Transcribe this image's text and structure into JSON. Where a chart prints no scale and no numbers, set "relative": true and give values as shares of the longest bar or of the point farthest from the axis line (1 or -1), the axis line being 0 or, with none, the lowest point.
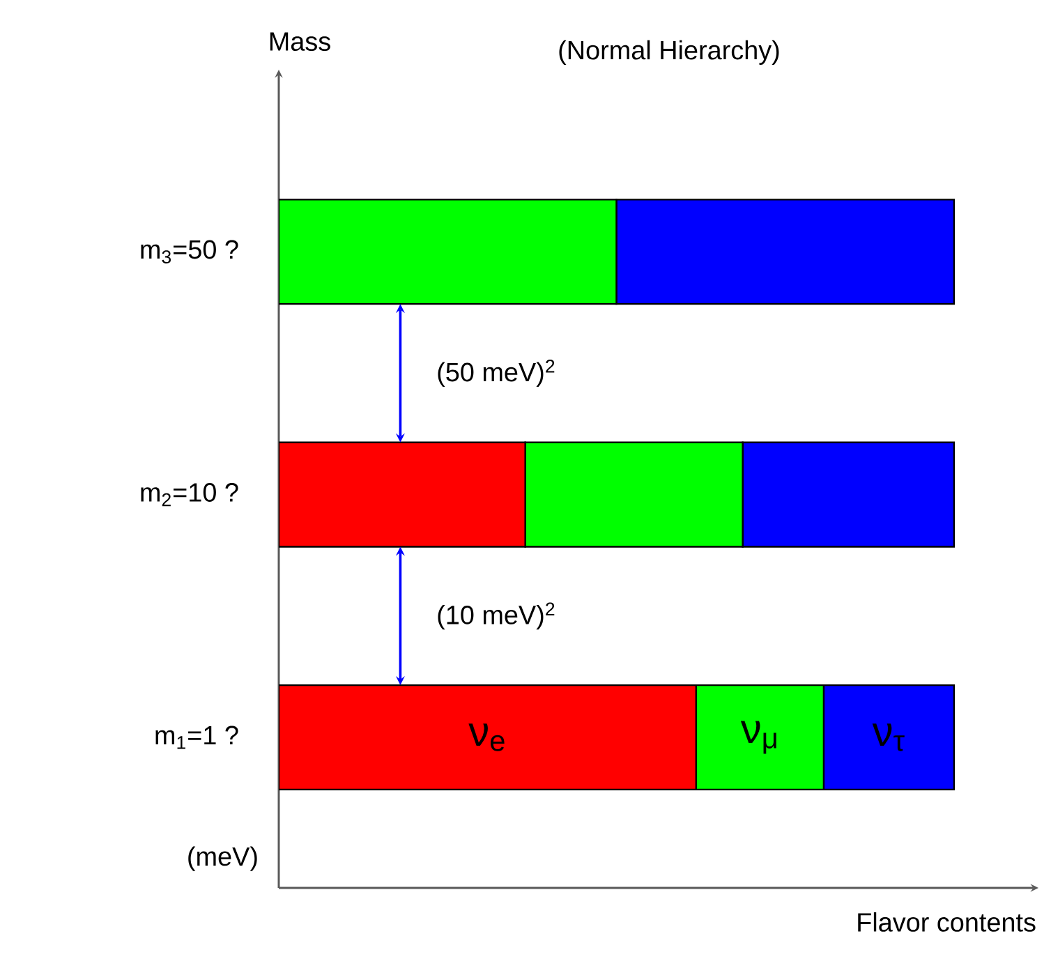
{
  "chart_data": {
    "type": "bar",
    "orientation": "horizontal",
    "stacked": true,
    "relative": true,
    "legend": false,
    "title": "(Normal Hierarchy)",
    "xlabel": "Flavor contents",
    "ylabel": "Mass",
    "categories": [
      "m$_{3}$=50 ?",
      "m$_{2}$=10 ?",
      "m$_{1}$=1 ?"
    ],
    "series": [
      {
        "name": "ν$_{e}$",
        "color": "#ff0000",
        "values": [
          null,
          0.365,
          0.618
        ]
      },
      {
        "name": "ν$_{μ}$",
        "color": "#00ff00",
        "values": [
          0.5,
          0.322,
          0.189
        ]
      },
      {
        "name": "ν$_{τ}$",
        "color": "#0000ff",
        "values": [
          0.5,
          0.313,
          0.193
        ]
      }
    ],
    "annotations": [
      "(50 meV)$^{2}$",
      "(10 meV)$^{2}$",
      "(meV)"
    ]
  }
}
